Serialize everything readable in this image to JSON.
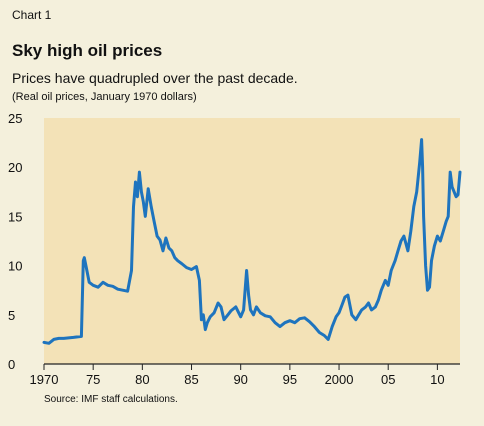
{
  "header": {
    "kicker": "Chart 1",
    "title": "Sky high oil prices",
    "subtitle": "Prices have quadrupled over the past decade.",
    "note": "(Real oil prices, January 1970 dollars)"
  },
  "footer": {
    "source": "Source: IMF staff calculations."
  },
  "colors": {
    "plot_bg": "#f3e2b7",
    "line": "#1e74be",
    "page_bg": "#f4f0dc",
    "axis": "#222222"
  },
  "chart_data": {
    "type": "line",
    "title": "Sky high oil prices",
    "subtitle": "Prices have quadrupled over the past decade.",
    "ylabel": "(Real oil prices, January 1970 dollars)",
    "xlabel": "",
    "xlim": [
      1970,
      2012.3
    ],
    "ylim": [
      0,
      25
    ],
    "yticks": [
      0,
      5,
      10,
      15,
      20,
      25
    ],
    "xticks": [
      {
        "value": 1970,
        "label": "1970"
      },
      {
        "value": 1975,
        "label": "75"
      },
      {
        "value": 1980,
        "label": "80"
      },
      {
        "value": 1985,
        "label": "85"
      },
      {
        "value": 1990,
        "label": "90"
      },
      {
        "value": 1995,
        "label": "95"
      },
      {
        "value": 2000,
        "label": "2000"
      },
      {
        "value": 2005,
        "label": "05"
      },
      {
        "value": 2010,
        "label": "10"
      }
    ],
    "grid": false,
    "legend": "none",
    "series": [
      {
        "x": [
          1970.0,
          1970.5,
          1971.0,
          1971.5,
          1972.0,
          1973.0,
          1973.8,
          1974.0,
          1974.1,
          1974.3,
          1974.6,
          1975.0,
          1975.5,
          1976.0,
          1976.5,
          1977.0,
          1977.5,
          1978.0,
          1978.5,
          1978.9,
          1979.1,
          1979.3,
          1979.5,
          1979.7,
          1979.9,
          1980.1,
          1980.3,
          1980.6,
          1980.9,
          1981.2,
          1981.5,
          1981.8,
          1982.1,
          1982.4,
          1982.7,
          1983.0,
          1983.3,
          1983.6,
          1984.0,
          1984.5,
          1985.0,
          1985.5,
          1985.8,
          1986.0,
          1986.2,
          1986.4,
          1986.6,
          1986.9,
          1987.3,
          1987.7,
          1988.0,
          1988.3,
          1988.7,
          1989.0,
          1989.5,
          1990.0,
          1990.3,
          1990.6,
          1990.8,
          1991.0,
          1991.3,
          1991.6,
          1992.0,
          1992.5,
          1993.0,
          1993.5,
          1994.0,
          1994.5,
          1995.0,
          1995.5,
          1996.0,
          1996.5,
          1997.0,
          1997.5,
          1998.0,
          1998.5,
          1998.9,
          1999.3,
          1999.7,
          2000.0,
          2000.3,
          2000.6,
          2000.9,
          2001.3,
          2001.7,
          2002.0,
          2002.3,
          2002.7,
          2003.0,
          2003.3,
          2003.7,
          2004.0,
          2004.3,
          2004.7,
          2005.0,
          2005.3,
          2005.7,
          2006.0,
          2006.3,
          2006.6,
          2007.0,
          2007.3,
          2007.6,
          2007.9,
          2008.2,
          2008.4,
          2008.5,
          2008.6,
          2008.8,
          2009.0,
          2009.2,
          2009.4,
          2009.7,
          2010.0,
          2010.3,
          2010.6,
          2010.9,
          2011.1,
          2011.3,
          2011.5,
          2011.7,
          2011.9,
          2012.1,
          2012.3
        ],
        "values": [
          2.2,
          2.1,
          2.5,
          2.6,
          2.6,
          2.7,
          2.8,
          10.5,
          10.8,
          9.8,
          8.3,
          8.0,
          7.8,
          8.3,
          8.0,
          7.9,
          7.6,
          7.5,
          7.4,
          9.5,
          16.0,
          18.5,
          17.0,
          19.5,
          17.5,
          16.5,
          15.0,
          17.8,
          16.0,
          14.5,
          13.0,
          12.6,
          11.5,
          12.8,
          11.8,
          11.5,
          10.8,
          10.5,
          10.2,
          9.8,
          9.6,
          9.9,
          8.5,
          4.5,
          5.0,
          3.5,
          4.2,
          4.8,
          5.2,
          6.2,
          5.8,
          4.5,
          5.0,
          5.4,
          5.8,
          4.8,
          5.5,
          9.5,
          7.0,
          5.5,
          5.0,
          5.8,
          5.2,
          4.9,
          4.8,
          4.2,
          3.8,
          4.2,
          4.4,
          4.2,
          4.6,
          4.7,
          4.3,
          3.8,
          3.2,
          2.9,
          2.5,
          3.8,
          4.8,
          5.2,
          6.0,
          6.8,
          7.0,
          5.0,
          4.5,
          5.0,
          5.5,
          5.8,
          6.2,
          5.5,
          5.8,
          6.5,
          7.5,
          8.5,
          8.0,
          9.5,
          10.5,
          11.5,
          12.5,
          13.0,
          11.5,
          13.5,
          16.0,
          17.5,
          20.5,
          22.8,
          20.0,
          15.0,
          10.0,
          7.5,
          7.8,
          10.5,
          12.0,
          13.0,
          12.5,
          13.5,
          14.5,
          15.0,
          19.5,
          18.0,
          17.5,
          17.0,
          17.2,
          19.5
        ]
      }
    ]
  }
}
